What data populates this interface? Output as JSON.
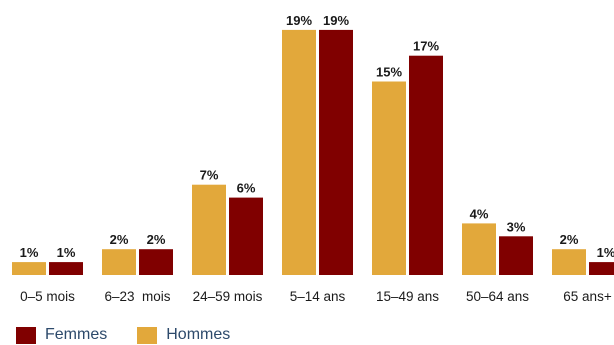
{
  "chart_data": {
    "type": "bar",
    "categories": [
      "0–5 mois",
      "6–23  mois",
      "24–59 mois",
      "5–14 ans",
      "15–49 ans",
      "50–64 ans",
      "65 ans+"
    ],
    "series": [
      {
        "name": "Hommes",
        "values": [
          1,
          2,
          7,
          19,
          15,
          4,
          2
        ],
        "labels": [
          "1%",
          "2%",
          "7%",
          "19%",
          "15%",
          "4%",
          "2%"
        ],
        "color": "#E2A83B"
      },
      {
        "name": "Femmes",
        "values": [
          1,
          2,
          6,
          19,
          17,
          3,
          1
        ],
        "labels": [
          "1%",
          "2%",
          "6%",
          "19%",
          "17%",
          "3%",
          "1%"
        ],
        "color": "#800000"
      }
    ],
    "ylim": [
      0,
      20
    ],
    "grid": false
  },
  "legend": {
    "items": [
      {
        "label": "Femmes",
        "color": "#800000"
      },
      {
        "label": "Hommes",
        "color": "#E2A83B"
      }
    ]
  }
}
